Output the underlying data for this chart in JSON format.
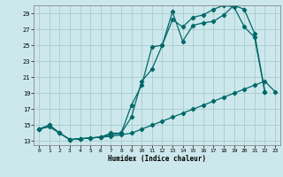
{
  "xlabel": "Humidex (Indice chaleur)",
  "bg_color": "#cce8ec",
  "grid_color": "#aacccc",
  "line_color": "#006868",
  "xlim": [
    -0.5,
    23.5
  ],
  "ylim": [
    12.5,
    30.0
  ],
  "yticks": [
    13,
    15,
    17,
    19,
    21,
    23,
    25,
    27,
    29
  ],
  "xticks": [
    0,
    1,
    2,
    3,
    4,
    5,
    6,
    7,
    8,
    9,
    10,
    11,
    12,
    13,
    14,
    15,
    16,
    17,
    18,
    19,
    20,
    21,
    22,
    23
  ],
  "s1_x": [
    0,
    1,
    2,
    3,
    4,
    5,
    6,
    7,
    8,
    9,
    10,
    11,
    12,
    13,
    14,
    15,
    16,
    17,
    18,
    19,
    20,
    21,
    22
  ],
  "s1_y": [
    14.5,
    15.0,
    14.0,
    13.2,
    13.3,
    13.4,
    13.5,
    13.8,
    14.0,
    17.5,
    20.0,
    24.8,
    25.0,
    29.2,
    25.5,
    27.5,
    27.8,
    28.0,
    28.8,
    30.0,
    29.5,
    26.5,
    19.2
  ],
  "s2_x": [
    0,
    1,
    2,
    3,
    4,
    5,
    6,
    7,
    8,
    9,
    10,
    11,
    12,
    13,
    14,
    15,
    16,
    17,
    18,
    19,
    20,
    21,
    22
  ],
  "s2_y": [
    14.5,
    15.0,
    14.0,
    13.2,
    13.3,
    13.4,
    13.5,
    14.0,
    14.0,
    16.0,
    20.5,
    22.0,
    25.0,
    28.2,
    27.3,
    28.5,
    28.8,
    29.5,
    30.0,
    29.8,
    27.3,
    26.0,
    19.2
  ],
  "s3_x": [
    0,
    1,
    2,
    3,
    4,
    5,
    6,
    7,
    8,
    9,
    10,
    11,
    12,
    13,
    14,
    15,
    16,
    17,
    18,
    19,
    20,
    21,
    22,
    23
  ],
  "s3_y": [
    14.5,
    14.8,
    14.0,
    13.2,
    13.3,
    13.4,
    13.5,
    13.6,
    13.8,
    14.0,
    14.5,
    15.0,
    15.5,
    16.0,
    16.5,
    17.0,
    17.5,
    18.0,
    18.5,
    19.0,
    19.5,
    20.0,
    20.5,
    19.2
  ]
}
